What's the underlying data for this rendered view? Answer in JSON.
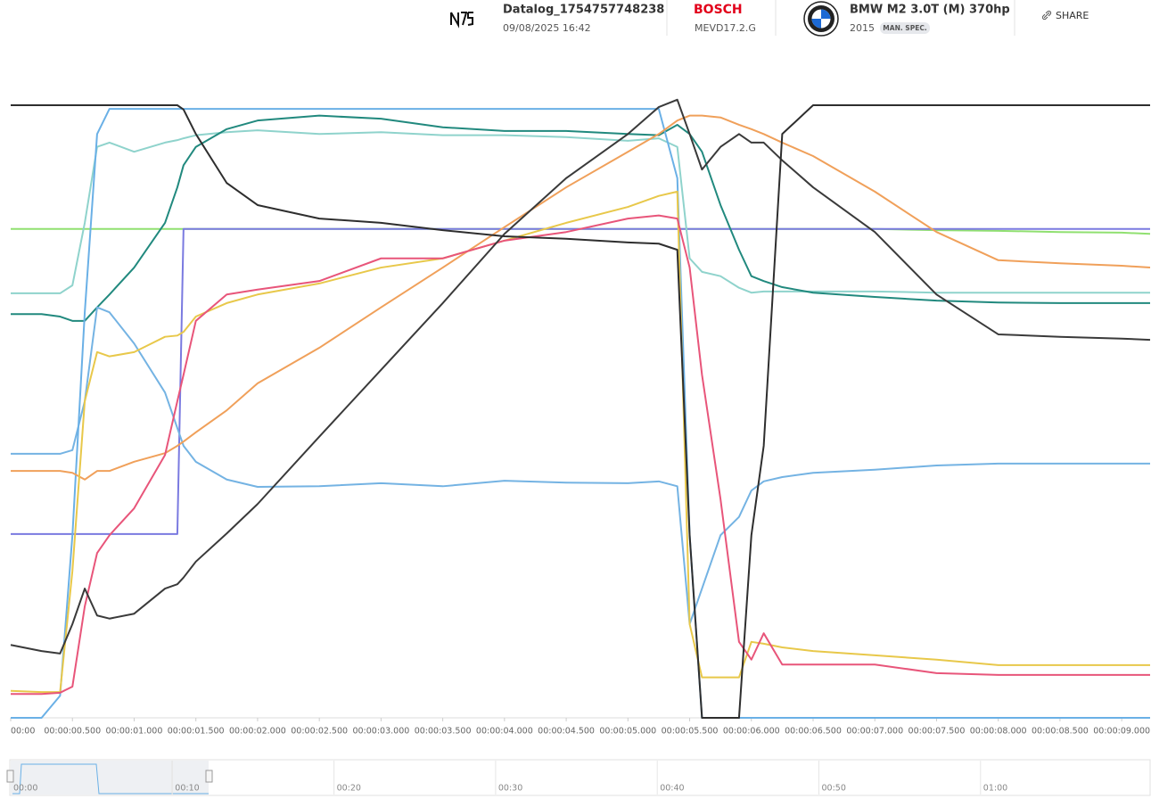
{
  "header": {
    "file_name": "Datalog_1754757748238",
    "date": "09/08/2025 16:42",
    "ecu_brand": "BOSCH",
    "ecu_model": "MEVD17.2.G",
    "vehicle": "BMW M2 3.0T (M) 370hp",
    "year": "2015",
    "badge": "MAN. SPEC.",
    "share": "SHARE"
  },
  "chart_data": {
    "type": "line",
    "x": [
      0,
      0.25,
      0.4,
      0.5,
      0.6,
      0.7,
      0.8,
      1.0,
      1.25,
      1.35,
      1.4,
      1.5,
      1.75,
      2.0,
      2.5,
      3.0,
      3.5,
      4.0,
      4.5,
      5.0,
      5.25,
      5.4,
      5.5,
      5.6,
      5.75,
      5.9,
      6.0,
      6.1,
      6.25,
      6.5,
      7.0,
      7.5,
      8.0,
      8.5,
      9.0,
      9.23
    ],
    "xlim": [
      0,
      9.23
    ],
    "ylim": [
      0,
      105
    ],
    "xticks": [
      {
        "value": 0,
        "label": "00:00"
      },
      {
        "value": 0.5,
        "label": "00:00:00.500"
      },
      {
        "value": 1.0,
        "label": "00:00:01.000"
      },
      {
        "value": 1.5,
        "label": "00:00:01.500"
      },
      {
        "value": 2.0,
        "label": "00:00:02.000"
      },
      {
        "value": 2.5,
        "label": "00:00:02.500"
      },
      {
        "value": 3.0,
        "label": "00:00:03.000"
      },
      {
        "value": 3.5,
        "label": "00:00:03.500"
      },
      {
        "value": 4.0,
        "label": "00:00:04.000"
      },
      {
        "value": 4.5,
        "label": "00:00:04.500"
      },
      {
        "value": 5.0,
        "label": "00:00:05.000"
      },
      {
        "value": 5.5,
        "label": "00:00:05.500"
      },
      {
        "value": 6.0,
        "label": "00:00:06.000"
      },
      {
        "value": 6.5,
        "label": "00:00:06.500"
      },
      {
        "value": 7.0,
        "label": "00:00:07.000"
      },
      {
        "value": 7.5,
        "label": "00:00:07.500"
      },
      {
        "value": 8.0,
        "label": "00:00:08.000"
      },
      {
        "value": 8.5,
        "label": "00:00:08.500"
      },
      {
        "value": 9.0,
        "label": "00:00:09.000"
      }
    ],
    "series": [
      {
        "color": "#90e070",
        "values": [
          79.8,
          79.8,
          79.8,
          79.8,
          79.8,
          79.8,
          79.8,
          79.8,
          79.8,
          79.8,
          79.8,
          79.8,
          79.8,
          79.8,
          79.8,
          79.8,
          79.8,
          79.8,
          79.8,
          79.8,
          79.8,
          79.8,
          79.8,
          79.8,
          79.8,
          79.8,
          79.8,
          79.8,
          79.8,
          79.8,
          79.8,
          79.6,
          79.5,
          79.3,
          79.2,
          79.0
        ]
      },
      {
        "color": "#7a7ae0",
        "values": [
          30.0,
          30.0,
          30.0,
          30.0,
          30.0,
          30.0,
          30.0,
          30.0,
          30.0,
          30.0,
          79.8,
          79.8,
          79.8,
          79.8,
          79.8,
          79.8,
          79.8,
          79.8,
          79.8,
          79.8,
          79.8,
          79.8,
          79.8,
          79.8,
          79.8,
          79.8,
          79.8,
          79.8,
          79.8,
          79.8,
          79.8,
          79.8,
          79.8,
          79.8,
          79.8,
          79.8
        ]
      },
      {
        "color": "#8fd3cc",
        "values": [
          69.3,
          69.3,
          69.3,
          70.6,
          80.8,
          93.2,
          93.9,
          92.4,
          93.9,
          94.3,
          94.6,
          95.1,
          95.6,
          95.9,
          95.3,
          95.6,
          95.1,
          95.1,
          94.8,
          94.2,
          94.6,
          93.2,
          75.0,
          72.8,
          72.1,
          70.2,
          69.4,
          69.6,
          69.6,
          69.6,
          69.6,
          69.4,
          69.4,
          69.4,
          69.4,
          69.4
        ]
      },
      {
        "color": "#21897e",
        "values": [
          65.9,
          65.9,
          65.5,
          64.8,
          64.8,
          67.0,
          69.1,
          73.5,
          80.8,
          86.6,
          90.2,
          93.2,
          96.1,
          97.5,
          98.3,
          97.8,
          96.4,
          95.8,
          95.8,
          95.3,
          95.1,
          96.8,
          95.3,
          92.4,
          83.7,
          76.4,
          72.1,
          71.3,
          70.3,
          69.4,
          68.7,
          68.1,
          67.8,
          67.7,
          67.7,
          67.7
        ]
      },
      {
        "color": "#74b3e3",
        "values": [
          43.1,
          43.1,
          43.1,
          43.7,
          51.7,
          67.0,
          66.2,
          61.1,
          53.1,
          47.3,
          44.4,
          41.8,
          38.9,
          37.7,
          37.8,
          38.3,
          37.8,
          38.7,
          38.4,
          38.3,
          38.6,
          37.8,
          15.3,
          21.1,
          29.8,
          32.8,
          37.1,
          38.6,
          39.3,
          40.0,
          40.5,
          41.2,
          41.5,
          41.5,
          41.5,
          41.5
        ]
      },
      {
        "color": "#6ab0e6",
        "values": [
          0,
          0,
          3.6,
          29.8,
          66.2,
          95.3,
          99.4,
          99.4,
          99.4,
          99.4,
          99.4,
          99.4,
          99.4,
          99.4,
          99.4,
          99.4,
          99.4,
          99.4,
          99.4,
          99.4,
          99.4,
          88.1,
          29.8,
          0,
          0,
          0,
          0,
          0,
          0,
          0,
          0,
          0,
          0,
          0,
          0,
          0
        ]
      },
      {
        "color": "#f0a05a",
        "values": [
          40.3,
          40.3,
          40.3,
          40.0,
          38.9,
          40.3,
          40.3,
          41.8,
          43.2,
          44.4,
          45.1,
          46.6,
          50.2,
          54.6,
          60.4,
          67.0,
          73.5,
          80.1,
          86.6,
          92.4,
          95.3,
          97.5,
          98.3,
          98.3,
          98.0,
          96.8,
          96.1,
          95.3,
          93.9,
          91.7,
          85.9,
          79.3,
          74.7,
          74.2,
          73.8,
          73.5
        ]
      },
      {
        "color": "#e8c84a",
        "values": [
          4.4,
          4.2,
          4.2,
          24.0,
          51.7,
          59.7,
          59.0,
          59.7,
          62.2,
          62.4,
          63.0,
          65.5,
          67.7,
          69.1,
          70.9,
          73.5,
          75.0,
          77.9,
          80.8,
          83.4,
          85.2,
          85.9,
          15.3,
          6.6,
          6.6,
          6.6,
          12.4,
          12.1,
          11.5,
          10.9,
          10.2,
          9.5,
          8.6,
          8.6,
          8.6,
          8.6
        ]
      },
      {
        "color": "#e8557a",
        "values": [
          3.9,
          3.9,
          4.1,
          5.1,
          18.2,
          26.9,
          29.8,
          34.2,
          42.9,
          51.7,
          56.0,
          64.8,
          69.1,
          69.9,
          71.3,
          75.0,
          75.0,
          77.9,
          79.3,
          81.5,
          82.0,
          81.5,
          73.5,
          56.0,
          35.7,
          12.4,
          9.5,
          13.8,
          8.7,
          8.7,
          8.7,
          7.3,
          7.0,
          7.0,
          7.0,
          7.0
        ]
      },
      {
        "color": "#3a3a3a",
        "values": [
          11.9,
          10.9,
          10.5,
          15.3,
          21.1,
          16.7,
          16.2,
          17.0,
          21.1,
          21.8,
          22.9,
          25.5,
          30.1,
          34.9,
          45.9,
          56.8,
          67.7,
          79.0,
          88.1,
          95.3,
          99.7,
          100.9,
          95.3,
          89.5,
          93.2,
          95.3,
          93.9,
          93.9,
          91.0,
          86.6,
          79.3,
          69.1,
          62.6,
          62.2,
          61.9,
          61.7
        ]
      },
      {
        "color": "#2e2e2e",
        "values": [
          100,
          100,
          100,
          100,
          100,
          100,
          100,
          100,
          100,
          100,
          99.3,
          95.3,
          87.3,
          83.7,
          81.5,
          80.8,
          79.6,
          78.6,
          78.2,
          77.6,
          77.4,
          76.4,
          29.8,
          0,
          0,
          0,
          29.8,
          44.4,
          95.3,
          100,
          100,
          100,
          100,
          100,
          100,
          100
        ]
      }
    ]
  },
  "navigator": {
    "ticks": [
      "00:00",
      "00:10",
      "00:20",
      "00:30",
      "00:40",
      "00:50",
      "01:00"
    ]
  }
}
